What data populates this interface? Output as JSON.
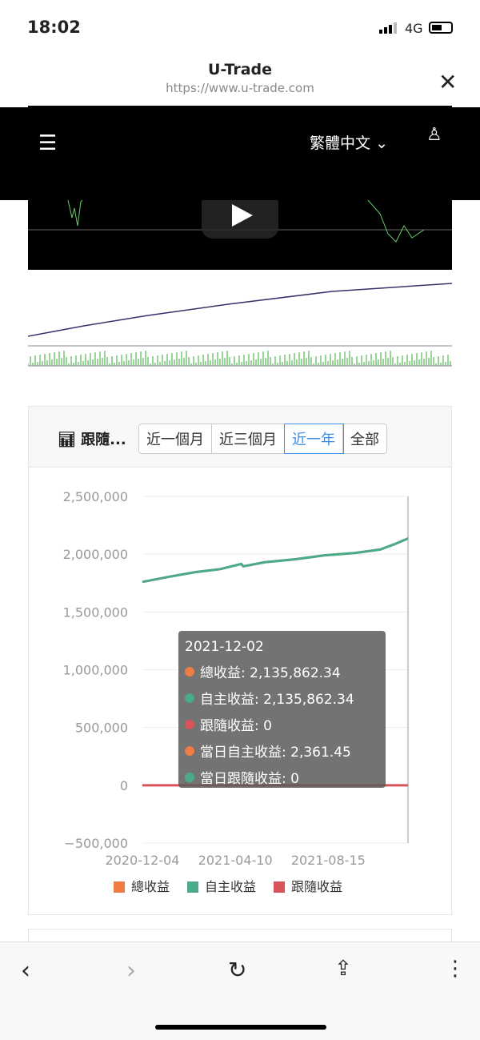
{
  "status": {
    "time": "18:02",
    "network": "4G"
  },
  "browser": {
    "title": "U-Trade",
    "url": "https://www.u-trade.com"
  },
  "nav": {
    "language": "繁體中文"
  },
  "card": {
    "title": "跟隨...",
    "ranges": [
      "近一個月",
      "近三個月",
      "近一年",
      "全部"
    ],
    "active_range": "近一年"
  },
  "chart_data": {
    "type": "line",
    "ylim": [
      -500000,
      2500000
    ],
    "yticks": [
      "2,500,000",
      "2,000,000",
      "1,500,000",
      "1,000,000",
      "500,000",
      "0",
      "−500,000"
    ],
    "ytick_values": [
      2500000,
      2000000,
      1500000,
      1000000,
      500000,
      0,
      -500000
    ],
    "xticks": [
      "2020-12-04",
      "2021-04-10",
      "2021-08-15"
    ],
    "xrange": [
      "2020-12-04",
      "2021-12-02"
    ],
    "grid": true,
    "legend_position": "bottom",
    "x": [
      "2020-12-04",
      "2021-01-10",
      "2021-02-15",
      "2021-03-20",
      "2021-04-18",
      "2021-04-21",
      "2021-05-20",
      "2021-06-30",
      "2021-08-10",
      "2021-09-20",
      "2021-10-25",
      "2021-11-15",
      "2021-12-02"
    ],
    "series": [
      {
        "name": "總收益",
        "color": "#ee7d45",
        "values": [
          1760000,
          1805000,
          1845000,
          1870000,
          1915000,
          1895000,
          1930000,
          1955000,
          1990000,
          2010000,
          2040000,
          2090000,
          2135862.34
        ]
      },
      {
        "name": "自主收益",
        "color": "#4aab8a",
        "values": [
          1760000,
          1805000,
          1845000,
          1870000,
          1915000,
          1895000,
          1930000,
          1955000,
          1990000,
          2010000,
          2040000,
          2090000,
          2135862.34
        ]
      },
      {
        "name": "跟隨收益",
        "color": "#d8535a",
        "values": [
          0,
          0,
          0,
          0,
          0,
          0,
          0,
          0,
          0,
          0,
          0,
          0,
          0
        ]
      }
    ],
    "tooltip": {
      "date": "2021-12-02",
      "rows": [
        {
          "label": "總收益: 2,135,862.34",
          "color": "#ee7d45"
        },
        {
          "label": "自主收益: 2,135,862.34",
          "color": "#4aab8a"
        },
        {
          "label": "跟隨收益: 0",
          "color": "#d8535a"
        },
        {
          "label": "當日自主收益: 2,361.45",
          "color": "#ee7d45"
        },
        {
          "label": "當日跟隨收益: 0",
          "color": "#4aab8a"
        }
      ]
    }
  }
}
